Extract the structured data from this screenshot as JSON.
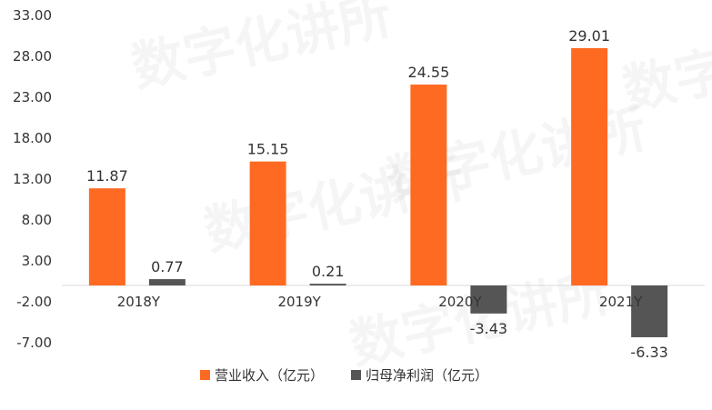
{
  "chart_data": {
    "type": "bar",
    "categories": [
      "2018Y",
      "2019Y",
      "2020Y",
      "2021Y"
    ],
    "series": [
      {
        "name": "营业收入（亿元）",
        "values": [
          11.87,
          15.15,
          24.55,
          29.01
        ],
        "color": "#FF6A22"
      },
      {
        "name": "归母净利润（亿元）",
        "values": [
          0.77,
          0.21,
          -3.43,
          -6.33
        ],
        "color": "#555555"
      }
    ],
    "data_labels": [
      [
        "11.87",
        "15.15",
        "24.55",
        "29.01"
      ],
      [
        "0.77",
        "0.21",
        "-3.43",
        "-6.33"
      ]
    ],
    "y_ticks": [
      "33.00",
      "28.00",
      "23.00",
      "18.00",
      "13.00",
      "8.00",
      "3.00",
      "-2.00",
      "-7.00"
    ],
    "ylim": [
      -7,
      33
    ],
    "grid": false,
    "legend_position": "bottom",
    "title": "",
    "xlabel": "",
    "ylabel": ""
  }
}
